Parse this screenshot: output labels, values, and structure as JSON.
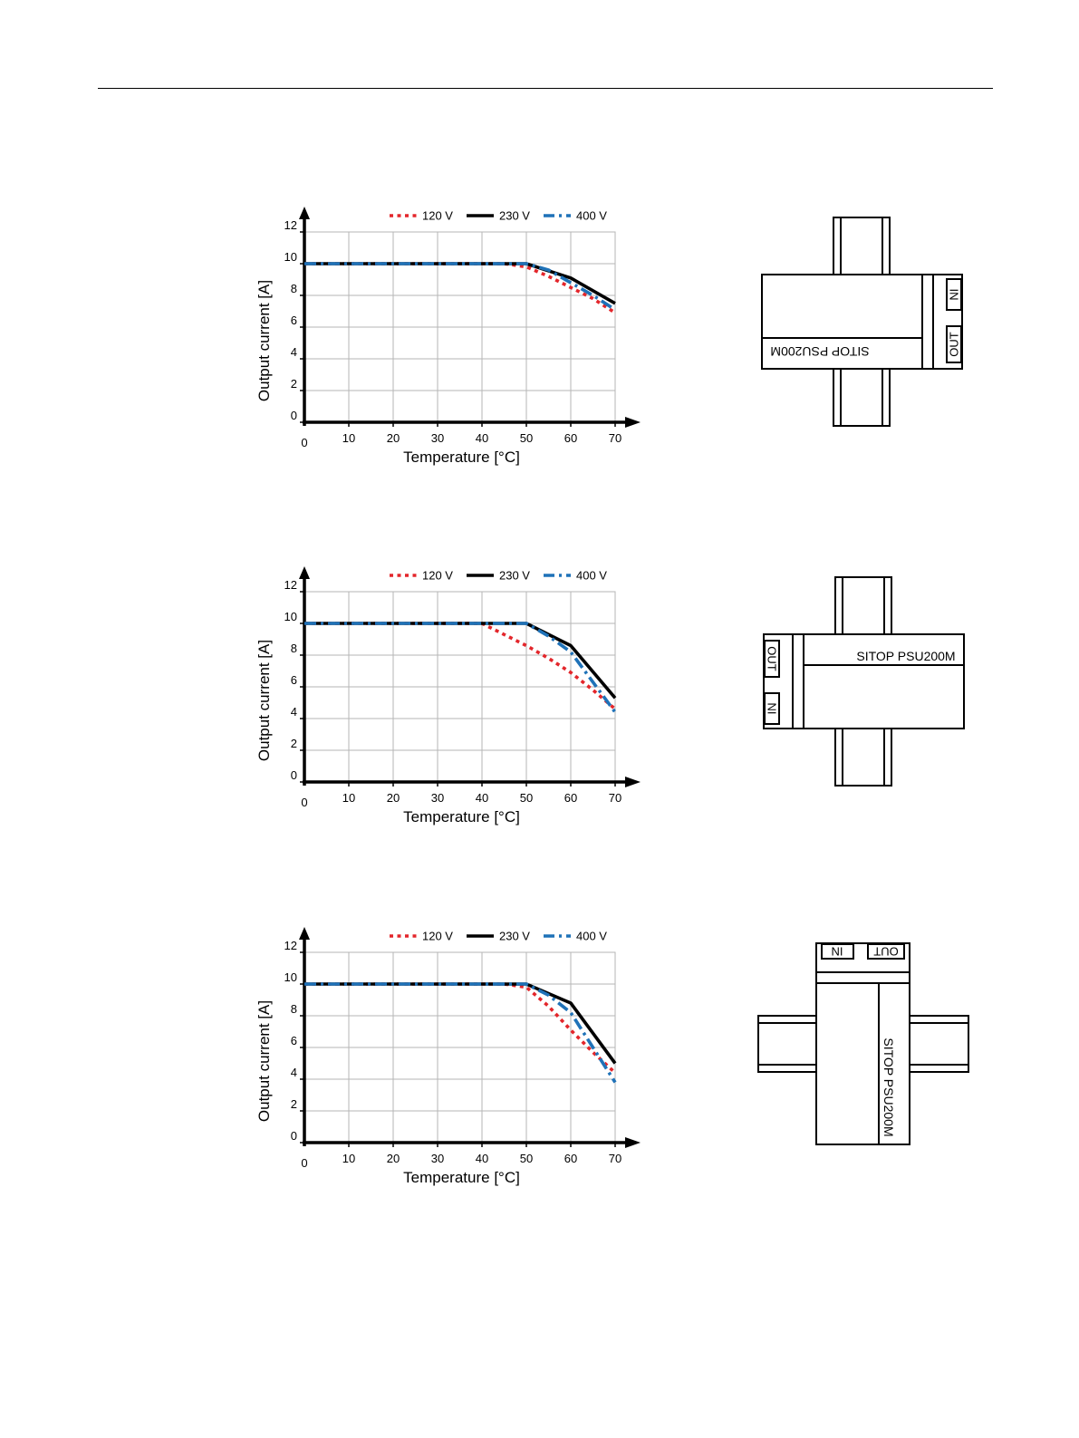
{
  "legend": [
    {
      "label": "120 V",
      "color": "#e3262b",
      "style": "dotted"
    },
    {
      "label": "230 V",
      "color": "#000000",
      "style": "solid"
    },
    {
      "label": "400 V",
      "color": "#1f72b8",
      "style": "dash-dot"
    }
  ],
  "chart_data": [
    {
      "type": "line",
      "xlabel": "Temperature [°C]",
      "ylabel": "Output current [A]",
      "xlim": [
        0,
        70
      ],
      "ylim": [
        0,
        12
      ],
      "xticks": [
        0,
        10,
        20,
        30,
        40,
        50,
        60,
        70
      ],
      "yticks": [
        0,
        2,
        4,
        6,
        8,
        10,
        12
      ],
      "grid": true,
      "legend_position": "top",
      "series": [
        {
          "name": "120 V",
          "x": [
            0,
            45,
            50,
            55,
            60,
            65,
            70
          ],
          "y": [
            10,
            10,
            9.8,
            9.2,
            8.5,
            7.8,
            6.9
          ]
        },
        {
          "name": "230 V",
          "x": [
            0,
            50,
            60,
            70
          ],
          "y": [
            10,
            10,
            9.1,
            7.5
          ]
        },
        {
          "name": "400 V",
          "x": [
            0,
            50,
            55,
            60,
            65,
            70
          ],
          "y": [
            10,
            10,
            9.6,
            8.8,
            8.0,
            7.1
          ]
        }
      ]
    },
    {
      "type": "line",
      "xlabel": "Temperature [°C]",
      "ylabel": "Output current [A]",
      "xlim": [
        0,
        70
      ],
      "ylim": [
        0,
        12
      ],
      "xticks": [
        0,
        10,
        20,
        30,
        40,
        50,
        60,
        70
      ],
      "yticks": [
        0,
        2,
        4,
        6,
        8,
        10,
        12
      ],
      "grid": true,
      "legend_position": "top",
      "series": [
        {
          "name": "120 V",
          "x": [
            0,
            40,
            45,
            50,
            55,
            60,
            65,
            70
          ],
          "y": [
            10,
            10,
            9.3,
            8.6,
            7.8,
            6.9,
            5.8,
            4.6
          ]
        },
        {
          "name": "230 V",
          "x": [
            0,
            50,
            60,
            70
          ],
          "y": [
            10,
            10,
            8.6,
            5.3
          ]
        },
        {
          "name": "400 V",
          "x": [
            0,
            50,
            55,
            60,
            65,
            70
          ],
          "y": [
            10,
            10,
            9.2,
            8.2,
            6.3,
            4.4
          ]
        }
      ]
    },
    {
      "type": "line",
      "xlabel": "Temperature [°C]",
      "ylabel": "Output current [A]",
      "xlim": [
        0,
        70
      ],
      "ylim": [
        0,
        12
      ],
      "xticks": [
        0,
        10,
        20,
        30,
        40,
        50,
        60,
        70
      ],
      "yticks": [
        0,
        2,
        4,
        6,
        8,
        10,
        12
      ],
      "grid": true,
      "legend_position": "top",
      "series": [
        {
          "name": "120 V",
          "x": [
            0,
            45,
            50,
            55,
            60,
            65,
            70
          ],
          "y": [
            10,
            10,
            9.8,
            8.6,
            7.1,
            5.7,
            4.4
          ]
        },
        {
          "name": "230 V",
          "x": [
            0,
            50,
            60,
            70
          ],
          "y": [
            10,
            10,
            8.8,
            5.0
          ]
        },
        {
          "name": "400 V",
          "x": [
            0,
            50,
            55,
            60,
            65,
            70
          ],
          "y": [
            10,
            10,
            9.3,
            8.2,
            6.0,
            3.8
          ]
        }
      ]
    }
  ],
  "devices": [
    {
      "model": "SITOP PSU200M",
      "in_label": "IN",
      "out_label": "OUT",
      "orientation": "rotated-180"
    },
    {
      "model": "SITOP PSU200M",
      "in_label": "IN",
      "out_label": "OUT",
      "orientation": "standard"
    },
    {
      "model": "SITOP PSU200M",
      "in_label": "IN",
      "out_label": "OUT",
      "orientation": "rotated-90"
    }
  ]
}
